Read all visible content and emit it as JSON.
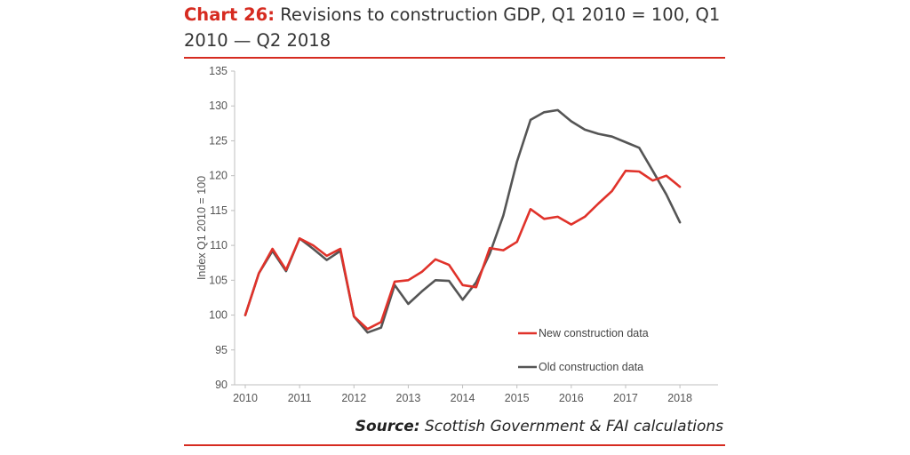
{
  "title": {
    "prefix": "Chart 26:",
    "text": " Revisions to construction GDP, Q1 2010 = 100, Q1 2010 — Q2 2018"
  },
  "source": {
    "label": "Source:",
    "text": " Scottish Government & FAI calculations"
  },
  "colors": {
    "accent": "#d62b20",
    "new_series": "#e0322a",
    "old_series": "#555555",
    "axis": "#bfbfbf",
    "text": "#555555"
  },
  "chart_data": {
    "type": "line",
    "ylabel": "Index Q1 2010 = 100",
    "xlabel": "",
    "ylim": [
      90,
      135
    ],
    "y_ticks": [
      90,
      95,
      100,
      105,
      110,
      115,
      120,
      125,
      130,
      135
    ],
    "x_tick_labels": [
      "2010",
      "2011",
      "2012",
      "2013",
      "2014",
      "2015",
      "2016",
      "2017",
      "2018"
    ],
    "grid": false,
    "legend_position": "lower-right",
    "x": [
      "2010 Q1",
      "2010 Q2",
      "2010 Q3",
      "2010 Q4",
      "2011 Q1",
      "2011 Q2",
      "2011 Q3",
      "2011 Q4",
      "2012 Q1",
      "2012 Q2",
      "2012 Q3",
      "2012 Q4",
      "2013 Q1",
      "2013 Q2",
      "2013 Q3",
      "2013 Q4",
      "2014 Q1",
      "2014 Q2",
      "2014 Q3",
      "2014 Q4",
      "2015 Q1",
      "2015 Q2",
      "2015 Q3",
      "2015 Q4",
      "2016 Q1",
      "2016 Q2",
      "2016 Q3",
      "2016 Q4",
      "2017 Q1",
      "2017 Q2",
      "2017 Q3",
      "2017 Q4",
      "2018 Q1",
      "2018 Q2"
    ],
    "series": [
      {
        "name": "New construction data",
        "values": [
          100,
          106,
          109.5,
          106.5,
          111,
          110,
          108.5,
          109.5,
          99.8,
          98,
          99,
          104.8,
          105,
          106.2,
          108,
          107.2,
          104.3,
          104,
          109.6,
          109.3,
          110.5,
          115.2,
          113.8,
          114.1,
          113,
          114.1,
          116,
          117.8,
          120.7,
          120.6,
          119.3,
          120,
          118.4,
          null
        ]
      },
      {
        "name": "Old construction data",
        "values": [
          100,
          106,
          109.2,
          106.3,
          111,
          109.5,
          107.9,
          109.2,
          99.8,
          97.5,
          98.2,
          104.3,
          101.6,
          103.4,
          105,
          104.9,
          102.2,
          104.7,
          108.8,
          114.3,
          122,
          128,
          129.1,
          129.4,
          127.8,
          126.6,
          126,
          125.6,
          124.8,
          124,
          120.7,
          117.3,
          113.3,
          null
        ]
      }
    ]
  }
}
